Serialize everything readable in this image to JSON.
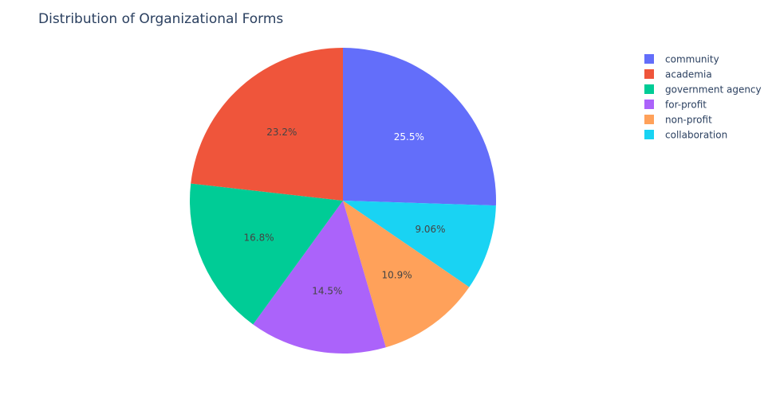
{
  "chart_data": {
    "type": "pie",
    "title": "Distribution of Organizational Forms",
    "categories": [
      "community",
      "academia",
      "government agency",
      "for-profit",
      "non-profit",
      "collaboration"
    ],
    "values": [
      25.5,
      23.2,
      16.8,
      14.5,
      10.9,
      9.06
    ],
    "labels": [
      "25.5%",
      "23.2%",
      "16.8%",
      "14.5%",
      "10.9%",
      "9.06%"
    ],
    "colors": [
      "#636efa",
      "#ef553b",
      "#00cc96",
      "#ab63fa",
      "#ffa15a",
      "#19d3f3"
    ],
    "label_colors": [
      "#ffffff",
      "#444444",
      "#444444",
      "#444444",
      "#444444",
      "#444444"
    ],
    "legend_position": "top-right",
    "slice_order": [
      0,
      5,
      4,
      3,
      2,
      1
    ]
  }
}
